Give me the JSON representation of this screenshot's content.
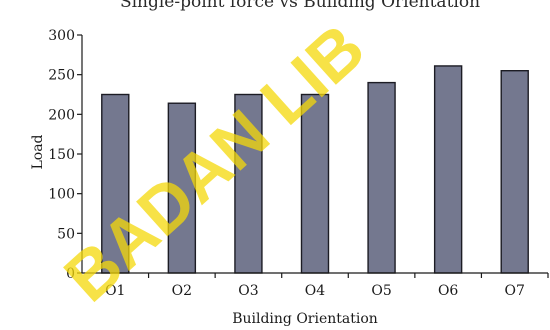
{
  "chart_data": {
    "type": "bar",
    "title": "Single-point force vs Building Orientation",
    "xlabel": "Building Orientation",
    "ylabel": "Load",
    "categories": [
      "O1",
      "O2",
      "O3",
      "O4",
      "O5",
      "O6",
      "O7"
    ],
    "values": [
      225,
      214,
      225,
      225,
      240,
      261,
      255
    ],
    "ylim": [
      0,
      300
    ],
    "yticks": [
      0,
      50,
      100,
      150,
      200,
      250,
      300
    ],
    "grid": false,
    "colors": {
      "bar_fill": "#74788f",
      "bar_stroke": "#1c1c24",
      "axis": "#1a1a1a"
    }
  },
  "watermark": {
    "text": "BADAN LIB"
  }
}
